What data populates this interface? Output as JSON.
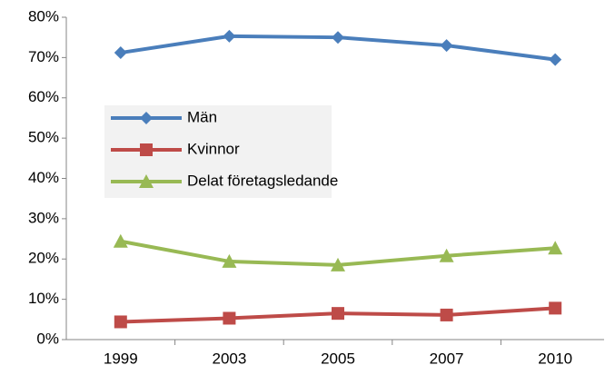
{
  "chart_data": {
    "type": "line",
    "categories": [
      "1999",
      "2003",
      "2005",
      "2007",
      "2010"
    ],
    "series": [
      {
        "name": "Män",
        "color": "#4a7ebb",
        "marker": "diamond",
        "values": [
          71.2,
          75.3,
          75.0,
          73.0,
          69.5
        ]
      },
      {
        "name": "Kvinnor",
        "color": "#be4b48",
        "marker": "square",
        "values": [
          4.4,
          5.3,
          6.5,
          6.1,
          7.8
        ]
      },
      {
        "name": "Delat företagsledande",
        "color": "#98b954",
        "marker": "triangle",
        "values": [
          24.4,
          19.4,
          18.5,
          20.8,
          22.7
        ]
      }
    ],
    "ylim": [
      0,
      80
    ],
    "yticks": [
      {
        "value": 0,
        "label": "0%"
      },
      {
        "value": 10,
        "label": "10%"
      },
      {
        "value": 20,
        "label": "20%"
      },
      {
        "value": 30,
        "label": "30%"
      },
      {
        "value": 40,
        "label": "40%"
      },
      {
        "value": 50,
        "label": "50%"
      },
      {
        "value": 60,
        "label": "60%"
      },
      {
        "value": 70,
        "label": "70%"
      },
      {
        "value": 80,
        "label": "80%"
      }
    ]
  }
}
